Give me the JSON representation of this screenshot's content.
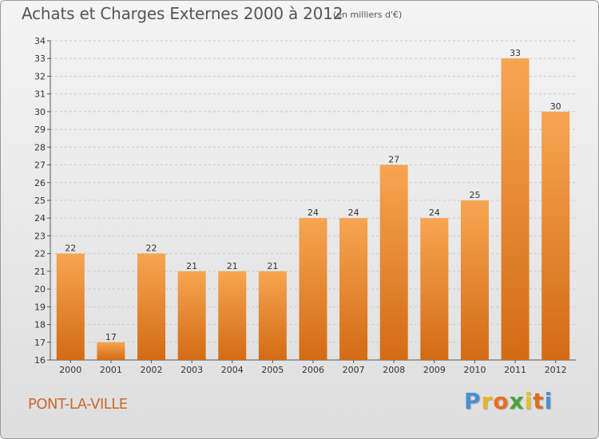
{
  "header": {
    "title": "Achats et Charges Externes 2000 à 2012",
    "unit": "(en milliers d'€)"
  },
  "footer": {
    "town": "PONT-LA-VILLE",
    "brand": [
      "P",
      "r",
      "o",
      "x",
      "i",
      "t",
      "i"
    ]
  },
  "colors": {
    "bar_top": "#f7a552",
    "bar_bottom": "#d36b14",
    "town": "#c96a2c",
    "brand": [
      "#4a8fd4",
      "#e8b624",
      "#ec6c1e",
      "#4aa43c",
      "#e4c224",
      "#e06a1c",
      "#4a8fd4"
    ]
  },
  "chart_data": {
    "type": "bar",
    "title": "Achats et Charges Externes 2000 à 2012",
    "subtitle": "(en milliers d'€)",
    "categories": [
      "2000",
      "2001",
      "2002",
      "2003",
      "2004",
      "2005",
      "2006",
      "2007",
      "2008",
      "2009",
      "2010",
      "2011",
      "2012"
    ],
    "values": [
      22,
      17,
      22,
      21,
      21,
      21,
      24,
      24,
      27,
      24,
      25,
      33,
      30
    ],
    "ylim": [
      16,
      34
    ],
    "yticks": [
      16,
      17,
      18,
      19,
      20,
      21,
      22,
      23,
      24,
      25,
      26,
      27,
      28,
      29,
      30,
      31,
      32,
      33,
      34
    ],
    "grid": true,
    "data_labels": true
  }
}
